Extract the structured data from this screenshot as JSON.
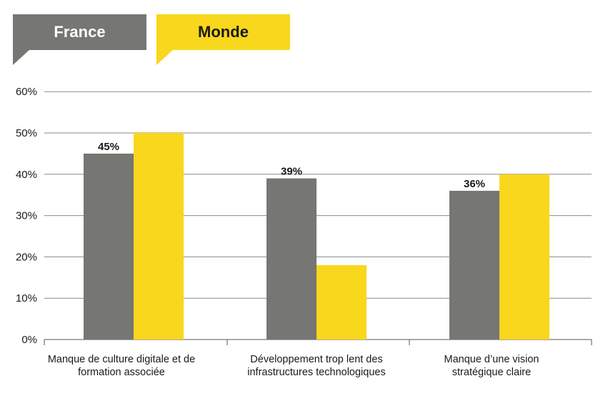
{
  "legend": {
    "france": {
      "label": "France",
      "color": "#767672"
    },
    "monde": {
      "label": "Monde",
      "color": "#f9d71c"
    }
  },
  "chart_data": {
    "type": "bar",
    "categories": [
      "Manque de culture digitale et de formation associée",
      "Développement trop lent des infrastructures technologiques",
      "Manque d’une vision stratégique claire"
    ],
    "series": [
      {
        "name": "France",
        "values": [
          45,
          39,
          36
        ],
        "color": "#767672",
        "data_labels": [
          "45%",
          "39%",
          "36%"
        ]
      },
      {
        "name": "Monde",
        "values": [
          50,
          18,
          40
        ],
        "color": "#f9d71c"
      }
    ],
    "ylim": [
      0,
      60
    ],
    "yticks": [
      0,
      10,
      20,
      30,
      40,
      50,
      60
    ],
    "ytick_labels": [
      "0%",
      "10%",
      "20%",
      "30%",
      "40%",
      "50%",
      "60%"
    ],
    "grid": true,
    "legend_position": "top-left"
  }
}
